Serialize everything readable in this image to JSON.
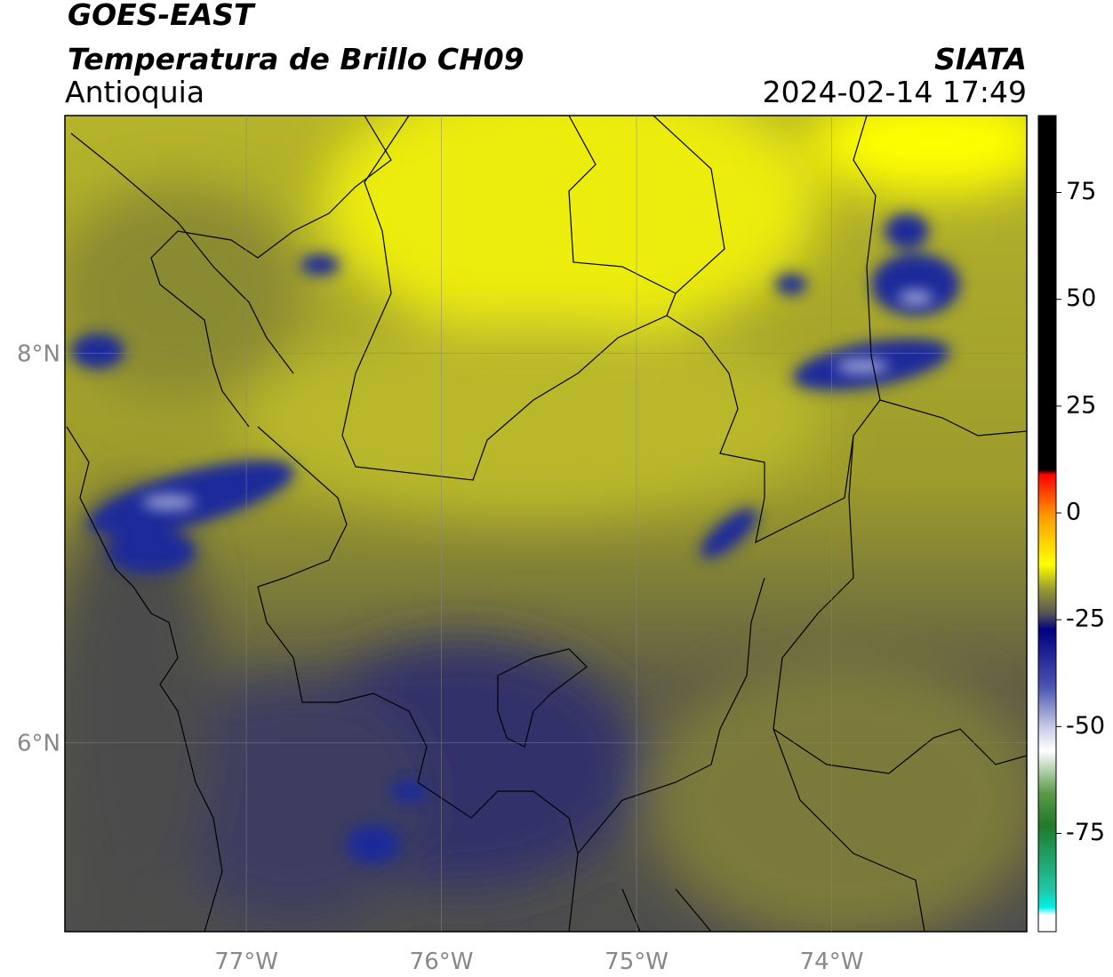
{
  "header": {
    "title": "GOES-EAST",
    "subtitle": "Temperatura de Brillo CH09",
    "region": "Antioquia",
    "source": "SIATA",
    "datetime": "2024-02-14 17:49"
  },
  "map": {
    "xlim": [
      -77.93,
      -73.0
    ],
    "ylim": [
      5.03,
      9.22
    ],
    "xticks": [
      {
        "value": -77,
        "label": "77°W"
      },
      {
        "value": -76,
        "label": "76°W"
      },
      {
        "value": -75,
        "label": "75°W"
      },
      {
        "value": -74,
        "label": "74°W"
      }
    ],
    "yticks": [
      {
        "value": 6,
        "label": "6°N"
      },
      {
        "value": 8,
        "label": "8°N"
      }
    ],
    "grid": true
  },
  "colorbar": {
    "lim": [
      -98,
      93
    ],
    "ticks": [
      -75,
      -50,
      -25,
      0,
      25,
      50,
      75
    ]
  }
}
